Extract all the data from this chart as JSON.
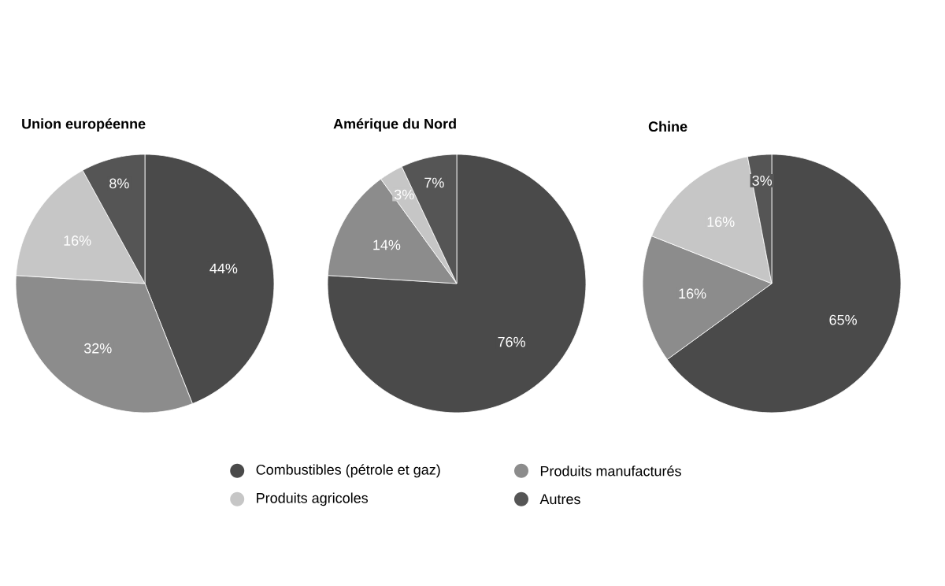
{
  "chart_data": [
    {
      "type": "pie",
      "title": "Union européenne",
      "categories": [
        null,
        null,
        null,
        null
      ],
      "values": [
        44,
        32,
        16,
        8
      ],
      "value_labels": [
        "44%",
        "32%",
        "16%",
        "8%"
      ],
      "colors": [
        "#4a4a4a",
        "#8c8c8c",
        "#c6c6c6",
        "#555555"
      ]
    },
    {
      "type": "pie",
      "title": "Amérique du Nord",
      "categories": [
        "Combustibles (pétrole et gaz)",
        "Produits manufacturés",
        "Produits agricoles",
        "Autres"
      ],
      "values": [
        76,
        14,
        3,
        7
      ],
      "value_labels": [
        "76%",
        "14%",
        "3%",
        "7%"
      ],
      "colors": [
        "#4a4a4a",
        "#8c8c8c",
        "#c6c6c6",
        "#555555"
      ],
      "legend": "bottom"
    },
    {
      "type": "pie",
      "title": "Chine",
      "categories": [
        null,
        null,
        null,
        null
      ],
      "values": [
        65,
        16,
        16,
        3
      ],
      "value_labels": [
        "65%",
        "16%",
        "16%",
        "3%"
      ],
      "colors": [
        "#4a4a4a",
        "#8c8c8c",
        "#c6c6c6",
        "#555555"
      ]
    }
  ]
}
